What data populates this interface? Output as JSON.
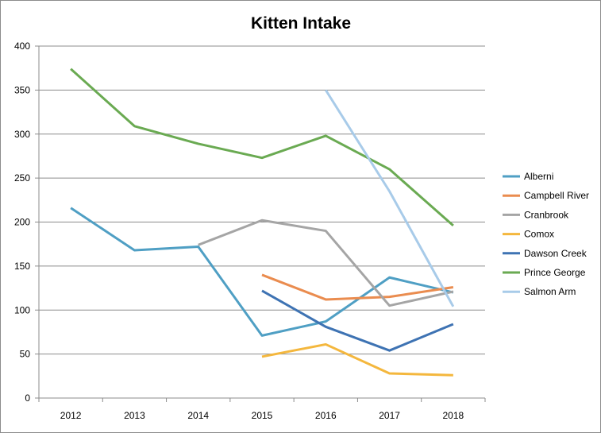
{
  "chart_data": {
    "type": "line",
    "title": "Kitten Intake",
    "xlabel": "",
    "ylabel": "",
    "categories": [
      "2012",
      "2013",
      "2014",
      "2015",
      "2016",
      "2017",
      "2018"
    ],
    "ylim": [
      0,
      400
    ],
    "yticks": [
      0,
      50,
      100,
      150,
      200,
      250,
      300,
      350,
      400
    ],
    "grid": true,
    "legend_position": "right",
    "series": [
      {
        "name": "Alberni",
        "color": "#4f9fc4",
        "values": [
          216,
          168,
          172,
          71,
          87,
          137,
          120
        ]
      },
      {
        "name": "Campbell River",
        "color": "#ea8c4f",
        "values": [
          null,
          null,
          null,
          140,
          112,
          115,
          126
        ]
      },
      {
        "name": "Cranbrook",
        "color": "#a5a5a5",
        "values": [
          null,
          null,
          174,
          202,
          190,
          105,
          121
        ]
      },
      {
        "name": "Comox",
        "color": "#f4b73d",
        "values": [
          null,
          null,
          null,
          47,
          61,
          28,
          26
        ]
      },
      {
        "name": "Dawson Creek",
        "color": "#3e73b3",
        "values": [
          null,
          null,
          null,
          122,
          81,
          54,
          84
        ]
      },
      {
        "name": "Prince George",
        "color": "#6aaa52",
        "values": [
          374,
          309,
          289,
          273,
          298,
          260,
          196
        ]
      },
      {
        "name": "Salmon Arm",
        "color": "#a8cbe9",
        "values": [
          null,
          null,
          null,
          null,
          350,
          235,
          104
        ]
      }
    ]
  }
}
